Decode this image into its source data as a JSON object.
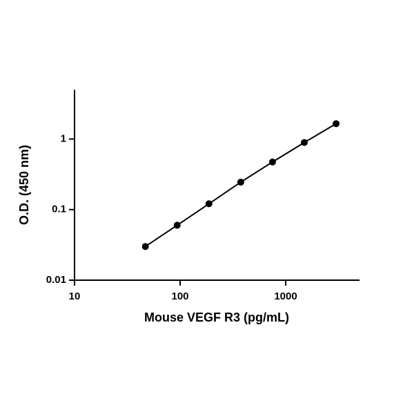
{
  "chart_data": {
    "type": "scatter",
    "x_label": "Mouse VEGF R3 (pg/mL)",
    "y_label": "O.D. (450 nm)",
    "x": [
      46.875,
      93.75,
      187.5,
      375,
      750,
      1500,
      3000
    ],
    "series": [
      {
        "color": "#000000",
        "values": [
          0.03,
          0.06,
          0.121,
          0.245,
          0.473,
          0.893,
          1.65
        ]
      }
    ],
    "xlim": [
      10,
      5000
    ],
    "ylim": [
      0.01,
      5
    ],
    "xticks": [
      10,
      100,
      1000
    ],
    "yticks": [
      0.01,
      0.1,
      1
    ],
    "xscale": "log",
    "yscale": "log",
    "line": true
  }
}
